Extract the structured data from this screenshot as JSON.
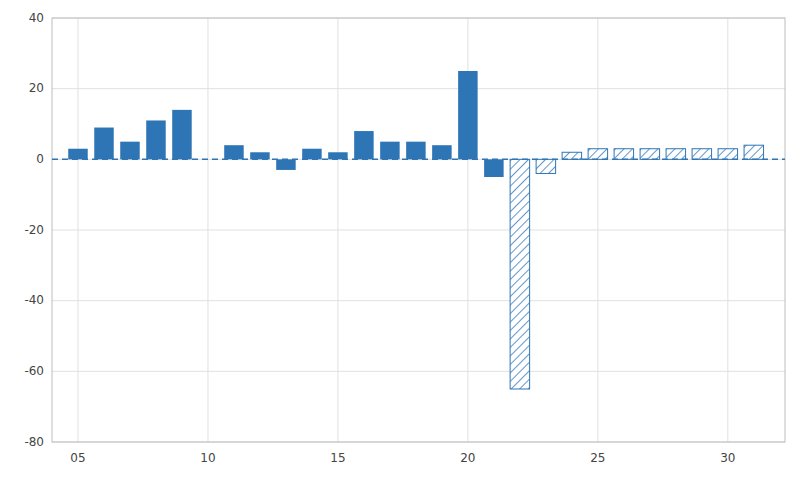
{
  "chart_data": {
    "type": "bar",
    "series": [
      {
        "x": [
          5,
          6,
          7,
          8,
          9,
          10,
          11,
          12,
          13,
          14,
          15,
          16,
          17,
          18,
          19,
          20,
          21
        ],
        "values": [
          3,
          9,
          5,
          11,
          14,
          0,
          4,
          2,
          -3,
          3,
          2,
          8,
          5,
          5,
          4,
          25,
          -5
        ],
        "color": "#2e75b6"
      },
      {
        "x": [
          22,
          23,
          24,
          25,
          26,
          27,
          28,
          29,
          30,
          31
        ],
        "values": [
          -65,
          -4,
          2,
          3,
          3,
          3,
          3,
          3,
          3,
          4
        ],
        "color": "#2e75b6"
      }
    ],
    "xlim": [
      4.0,
      32.2
    ],
    "xticks": [
      {
        "value": 5,
        "label": "05"
      },
      10,
      15,
      20,
      25,
      30
    ],
    "ylim": [
      -80,
      40
    ],
    "yticks": [
      -80,
      -60,
      -40,
      -20,
      0,
      20,
      40
    ],
    "grid": true
  }
}
